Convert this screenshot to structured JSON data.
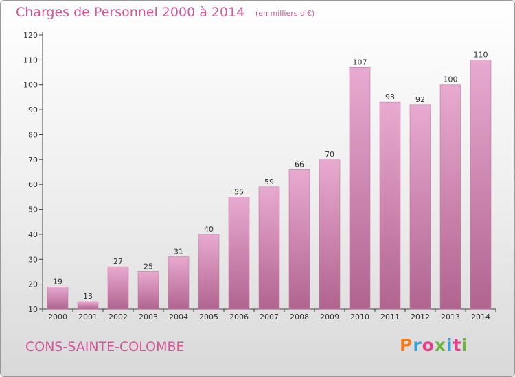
{
  "header": {
    "title": "Charges de Personnel 2000 à 2014",
    "subtitle": "(en milliers d'€)"
  },
  "footer": {
    "commune": "CONS-SAINTE-COLOMBE",
    "logo_text": "Proxiti",
    "logo_colors": [
      "#f07c1e",
      "#3aa0d6",
      "#e63e8c",
      "#6cb33f",
      "#3aa0d6",
      "#e63e8c",
      "#6cb33f"
    ]
  },
  "colors": {
    "title": "#d3559a",
    "bar_top": "#e8aad0",
    "bar_bottom": "#b0648f",
    "bar_edge": "#c27ba3"
  },
  "chart_data": {
    "type": "bar",
    "title": "Charges de Personnel 2000 à 2014",
    "subtitle": "(en milliers d'€)",
    "xlabel": "",
    "ylabel": "",
    "categories": [
      "2000",
      "2001",
      "2002",
      "2003",
      "2004",
      "2005",
      "2006",
      "2007",
      "2008",
      "2009",
      "2010",
      "2011",
      "2012",
      "2013",
      "2014"
    ],
    "values": [
      19,
      13,
      27,
      25,
      31,
      40,
      55,
      59,
      66,
      70,
      107,
      93,
      92,
      100,
      110
    ],
    "ylim": [
      10,
      120
    ],
    "yticks": [
      10,
      20,
      30,
      40,
      50,
      60,
      70,
      80,
      90,
      100,
      110,
      120
    ],
    "grid": false,
    "legend": "none",
    "data_labels": true
  }
}
